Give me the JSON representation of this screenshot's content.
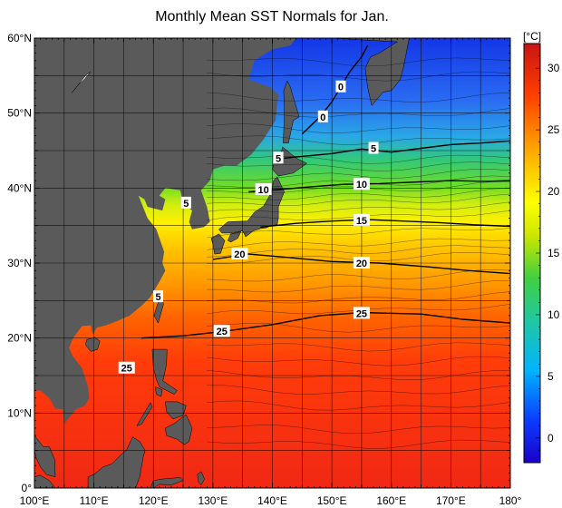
{
  "title": "Monthly Mean SST Normals for Jan.",
  "colorbar": {
    "unit_label": "[°C]",
    "min": -2,
    "max": 32,
    "ticks": [
      0,
      5,
      10,
      15,
      20,
      25,
      30
    ],
    "tick_labels": [
      "0",
      "5",
      "10",
      "15",
      "20",
      "25",
      "30"
    ]
  },
  "map": {
    "lon_range": [
      100,
      180
    ],
    "lat_range": [
      0,
      60
    ],
    "x_ticks": [
      100,
      110,
      120,
      130,
      140,
      150,
      160,
      170,
      180
    ],
    "x_tick_labels": [
      "100°E",
      "110°E",
      "120°E",
      "130°E",
      "140°E",
      "150°E",
      "160°E",
      "170°E",
      "180°"
    ],
    "y_ticks": [
      0,
      10,
      20,
      30,
      40,
      50,
      60
    ],
    "y_tick_labels": [
      "0°",
      "10°N",
      "20°N",
      "30°N",
      "40°N",
      "50°N",
      "60°N"
    ],
    "grid": true,
    "land_color": "#5a5a5a",
    "contour_labels": [
      {
        "text": "0",
        "lon": 151.5,
        "lat": 53.5
      },
      {
        "text": "0",
        "lon": 148.5,
        "lat": 49.5
      },
      {
        "text": "5",
        "lon": 157.0,
        "lat": 45.3
      },
      {
        "text": "5",
        "lon": 141.0,
        "lat": 44.0
      },
      {
        "text": "10",
        "lon": 138.5,
        "lat": 39.8
      },
      {
        "text": "10",
        "lon": 155.0,
        "lat": 40.5
      },
      {
        "text": "15",
        "lon": 155.0,
        "lat": 35.7
      },
      {
        "text": "5",
        "lon": 125.5,
        "lat": 38.0
      },
      {
        "text": "20",
        "lon": 134.5,
        "lat": 31.2
      },
      {
        "text": "20",
        "lon": 155.0,
        "lat": 30.0
      },
      {
        "text": "5",
        "lon": 120.8,
        "lat": 25.5
      },
      {
        "text": "25",
        "lon": 155.0,
        "lat": 23.3
      },
      {
        "text": "25",
        "lon": 131.5,
        "lat": 20.9
      },
      {
        "text": "25",
        "lon": 115.5,
        "lat": 16.0
      }
    ]
  }
}
